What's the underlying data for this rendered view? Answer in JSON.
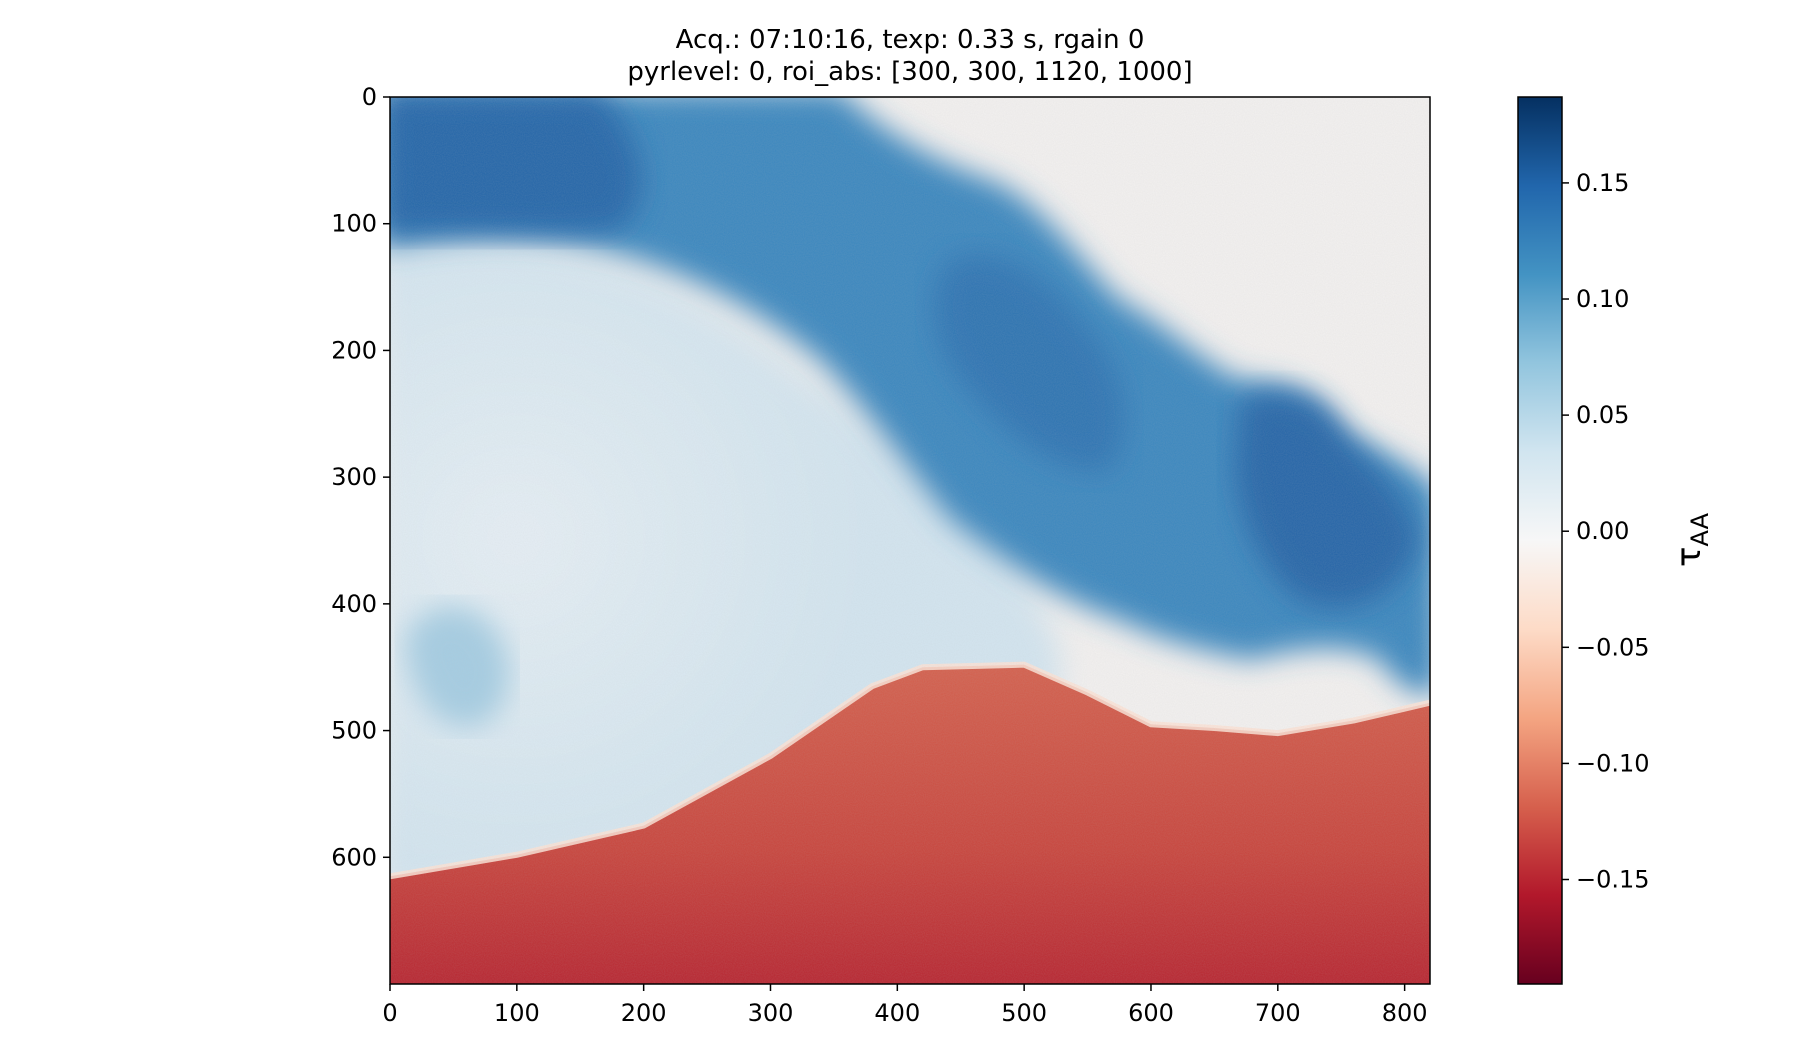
{
  "chart_data": {
    "type": "heatmap",
    "title": "Acq.: 07:10:16, texp: 0.33 s, rgain 0\npyrlevel: 0, roi_abs: [300, 300, 1120, 1000]",
    "xlim": [
      0,
      820
    ],
    "ylim": [
      700,
      0
    ],
    "x_ticks": [
      "0",
      "100",
      "200",
      "300",
      "400",
      "500",
      "600",
      "700",
      "800"
    ],
    "y_ticks": [
      "0",
      "100",
      "200",
      "300",
      "400",
      "500",
      "600"
    ],
    "colormap": "RdBu",
    "colorbar": {
      "label": "τ_AA",
      "range": [
        -0.195,
        0.187
      ],
      "ticks": [
        "0.15",
        "0.10",
        "0.05",
        "0.00",
        "−0.05",
        "−0.10",
        "−0.15"
      ],
      "tick_values": [
        0.15,
        0.1,
        0.05,
        0.0,
        -0.05,
        -0.1,
        -0.15
      ]
    },
    "regions": {
      "horizon_profile": [
        [
          0,
          615
        ],
        [
          100,
          598
        ],
        [
          200,
          575
        ],
        [
          300,
          520
        ],
        [
          380,
          465
        ],
        [
          420,
          450
        ],
        [
          500,
          448
        ],
        [
          550,
          470
        ],
        [
          600,
          495
        ],
        [
          650,
          498
        ],
        [
          700,
          502
        ],
        [
          760,
          492
        ],
        [
          820,
          478
        ]
      ],
      "horizon_value": -0.15,
      "plume_value": 0.13,
      "sky_value": 0.0
    }
  }
}
